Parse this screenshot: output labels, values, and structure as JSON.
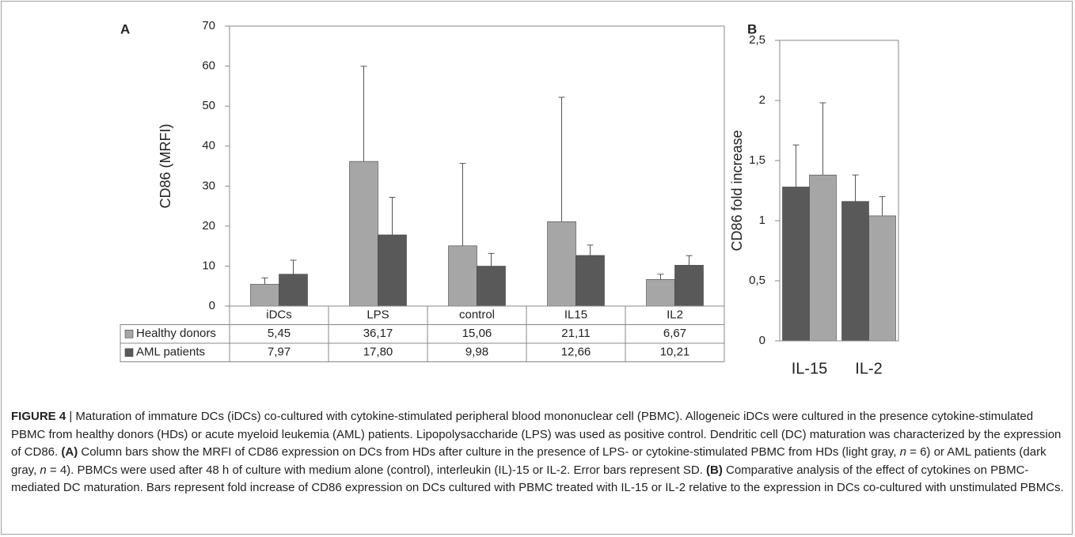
{
  "chart_data": [
    {
      "type": "bar",
      "panel_label": "A",
      "ylabel": "CD86 (MRFI)",
      "categories": [
        "iDCs",
        "LPS",
        "control",
        "IL15",
        "IL2"
      ],
      "series": [
        {
          "name": "Healthy donors",
          "color": "#a6a6a6",
          "values": [
            5.45,
            36.17,
            15.06,
            21.11,
            6.67
          ],
          "value_labels": [
            "5,45",
            "36,17",
            "15,06",
            "21,11",
            "6,67"
          ],
          "errors": [
            1.6,
            23.8,
            20.6,
            31.1,
            1.3
          ]
        },
        {
          "name": "AML patients",
          "color": "#595959",
          "values": [
            7.97,
            17.8,
            9.98,
            12.66,
            10.21
          ],
          "value_labels": [
            "7,97",
            "17,80",
            "9,98",
            "12,66",
            "10,21"
          ],
          "errors": [
            3.5,
            9.4,
            3.2,
            2.6,
            2.4
          ]
        }
      ],
      "ylim": [
        0,
        70
      ],
      "yticks": [
        0,
        10,
        20,
        30,
        40,
        50,
        60,
        70
      ],
      "data_table": true
    },
    {
      "type": "bar",
      "panel_label": "B",
      "ylabel": "CD86 fold increase",
      "categories": [
        "IL-15",
        "IL-2"
      ],
      "series": [
        {
          "color": "#595959",
          "values": [
            1.28,
            1.16
          ],
          "errors": [
            0.35,
            0.22
          ]
        },
        {
          "color": "#a6a6a6",
          "values": [
            1.38,
            1.04
          ],
          "errors": [
            0.6,
            0.16
          ]
        }
      ],
      "ylim": [
        0,
        2.5
      ],
      "yticks": [
        0,
        {
          "value": 0.5,
          "label": "0,5"
        },
        1,
        {
          "value": 1.5,
          "label": "1,5"
        },
        2,
        {
          "value": 2.5,
          "label": "2,5"
        }
      ],
      "data_table": false
    }
  ],
  "caption": {
    "segments": [
      {
        "text": "FIGURE 4",
        "style": "bold"
      },
      {
        "text": " | Maturation of immature DCs (iDCs) co-cultured with cytokine-stimulated peripheral blood mononuclear cell (PBMC). Allogeneic iDCs were cultured in the presence cytokine-stimulated PBMC from healthy donors (HDs) or acute myeloid leukemia (AML) patients. Lipopolysaccharide (LPS) was used as positive control. Dendritic cell (DC) maturation was characterized by the expression of CD86. ",
        "style": "normal"
      },
      {
        "text": "(A)",
        "style": "bold"
      },
      {
        "text": " Column bars show the MRFI of CD86 expression on DCs from HDs after culture in the presence of LPS- or cytokine-stimulated PBMC from HDs (light gray, ",
        "style": "normal"
      },
      {
        "text": "n",
        "style": "italic"
      },
      {
        "text": " = 6) or AML patients (dark gray, ",
        "style": "normal"
      },
      {
        "text": "n",
        "style": "italic"
      },
      {
        "text": " = 4). PBMCs were used after 48 h of culture with medium alone (control), interleukin (IL)-15 or IL-2. Error bars represent SD. ",
        "style": "normal"
      },
      {
        "text": "(B)",
        "style": "bold"
      },
      {
        "text": " Comparative analysis of the effect of cytokines on PBMC-mediated DC maturation. Bars represent fold increase of CD86 expression on DCs cultured with PBMC treated with IL-15 or IL-2 relative to the expression in DCs co-cultured with unstimulated PBMCs.",
        "style": "normal"
      }
    ]
  }
}
